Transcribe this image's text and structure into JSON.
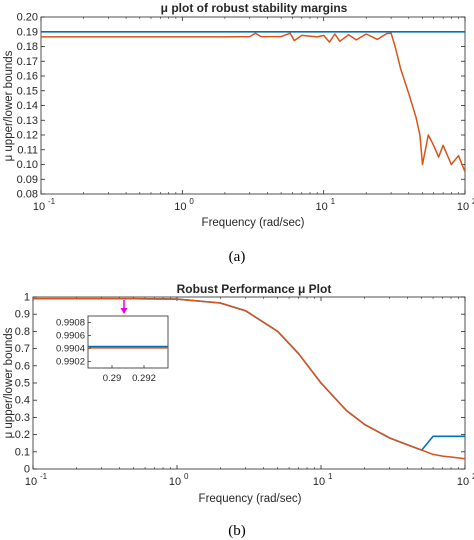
{
  "chart_data": [
    {
      "type": "line",
      "panel_caption": "(a)",
      "title": "μ plot of robust stability margins",
      "xlabel": "Frequency (rad/sec)",
      "ylabel": "μ upper/lower bounds",
      "xscale": "log",
      "xlim": [
        0.1,
        100
      ],
      "ylim": [
        0.08,
        0.2
      ],
      "yticks": [
        0.08,
        0.09,
        0.1,
        0.11,
        0.12,
        0.13,
        0.14,
        0.15,
        0.16,
        0.17,
        0.18,
        0.19,
        0.2
      ],
      "xticks": [
        "10",
        "10",
        "10",
        "10"
      ],
      "xtick_exponents": [
        "-1",
        "0",
        "1",
        "2"
      ],
      "grid": false,
      "colors": {
        "upper": "#0072BD",
        "lower": "#D95319"
      },
      "series": [
        {
          "x": [
            0.1,
            0.3,
            1,
            3,
            10,
            30,
            100
          ],
          "y": [
            0.19,
            0.19,
            0.19,
            0.19,
            0.19,
            0.19,
            0.19
          ]
        },
        {
          "x": [
            0.1,
            0.5,
            1,
            2,
            3,
            3.3,
            3.6,
            5,
            5.8,
            6.2,
            7,
            9,
            10,
            11,
            12,
            13,
            15,
            17,
            20,
            24,
            28,
            30,
            32,
            35,
            40,
            45,
            48,
            50,
            55,
            60,
            65,
            70,
            80,
            90,
            100
          ],
          "y": [
            0.1865,
            0.1865,
            0.1865,
            0.1865,
            0.1867,
            0.189,
            0.1867,
            0.1867,
            0.189,
            0.184,
            0.1875,
            0.1865,
            0.1875,
            0.183,
            0.1885,
            0.1835,
            0.188,
            0.1845,
            0.1885,
            0.1848,
            0.1888,
            0.189,
            0.18,
            0.165,
            0.148,
            0.132,
            0.12,
            0.1,
            0.12,
            0.113,
            0.105,
            0.113,
            0.1,
            0.106,
            0.095
          ]
        }
      ]
    },
    {
      "type": "line",
      "panel_caption": "(b)",
      "title": "Robust Performance μ Plot",
      "xlabel": "Frequency (rad/sec)",
      "ylabel": "μ upper/lower bounds",
      "xscale": "log",
      "xlim": [
        0.1,
        100
      ],
      "ylim": [
        0,
        1
      ],
      "yticks": [
        0,
        0.1,
        0.2,
        0.3,
        0.4,
        0.5,
        0.6,
        0.7,
        0.8,
        0.9,
        1
      ],
      "xticks": [
        "10",
        "10",
        "10",
        "10"
      ],
      "xtick_exponents": [
        "-1",
        "0",
        "1",
        "2"
      ],
      "grid": false,
      "colors": {
        "upper": "#0072BD",
        "lower": "#D95319",
        "marker": "#E600E6"
      },
      "series": [
        {
          "x": [
            0.1,
            0.5,
            1,
            2,
            3,
            5,
            7,
            10,
            15,
            20,
            30,
            40,
            50,
            60,
            70,
            80,
            100
          ],
          "y": [
            0.99,
            0.99,
            0.988,
            0.965,
            0.92,
            0.8,
            0.67,
            0.5,
            0.34,
            0.26,
            0.18,
            0.14,
            0.11,
            0.19,
            0.19,
            0.19,
            0.19
          ]
        },
        {
          "x": [
            0.1,
            0.5,
            1,
            2,
            3,
            5,
            7,
            10,
            15,
            20,
            30,
            40,
            50,
            60,
            70,
            80,
            100
          ],
          "y": [
            0.99,
            0.99,
            0.988,
            0.965,
            0.92,
            0.8,
            0.67,
            0.5,
            0.34,
            0.26,
            0.18,
            0.14,
            0.11,
            0.085,
            0.075,
            0.07,
            0.06
          ]
        }
      ],
      "inset": {
        "type": "line",
        "xlim": [
          0.2885,
          0.2935
        ],
        "ylim": [
          0.9901,
          0.9909
        ],
        "xticks": [
          "0.29",
          "0.292"
        ],
        "yticks": [
          "0.9902",
          "0.9904",
          "0.9906",
          "0.9908"
        ],
        "series": [
          {
            "x": [
              0.2885,
              0.2935
            ],
            "y": [
              0.99043,
              0.99043
            ]
          },
          {
            "x": [
              0.2885,
              0.2935
            ],
            "y": [
              0.99041,
              0.99041
            ]
          }
        ]
      }
    }
  ]
}
